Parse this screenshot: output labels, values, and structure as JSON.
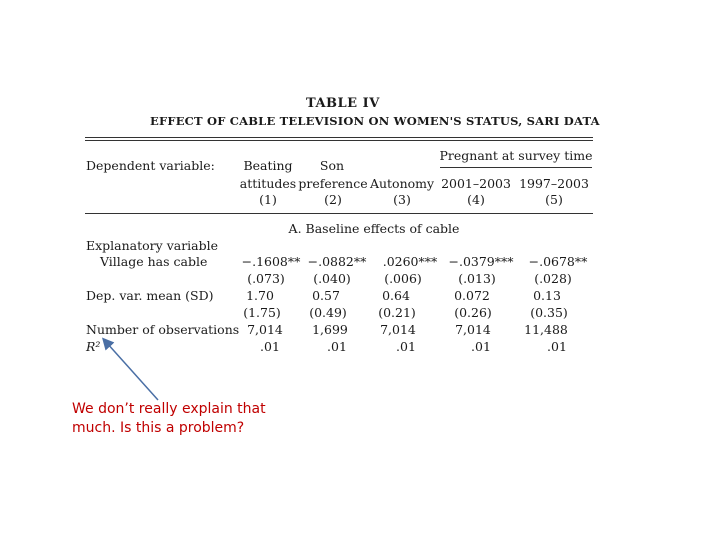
{
  "table": {
    "title": "TABLE IV",
    "subtitle": "EFFECT OF CABLE TELEVISION ON WOMEN'S STATUS, SARI DATA",
    "dep_var_label": "Dependent variable:",
    "col_group": "Pregnant at survey time",
    "columns": [
      {
        "line1": "Beating",
        "line2": "attitudes",
        "num": "(1)"
      },
      {
        "line1": "Son",
        "line2": "preference",
        "num": "(2)"
      },
      {
        "line1": "",
        "line2": "Autonomy",
        "num": "(3)"
      },
      {
        "line1": "",
        "line2": "2001–2003",
        "num": "(4)"
      },
      {
        "line1": "",
        "line2": "1997–2003",
        "num": "(5)"
      }
    ],
    "panel_a": "A. Baseline effects of cable",
    "expl_var_label": "Explanatory variable",
    "village_label": "Village has cable",
    "coefs": [
      "−.1608**",
      "−.0882**",
      ".0260***",
      "−.0379***",
      "−.0678**"
    ],
    "ses": [
      "(.073)",
      "(.040)",
      "(.006)",
      "(.013)",
      "(.028)"
    ],
    "dep_mean_label": "Dep. var. mean (SD)",
    "means": [
      "1.70",
      "0.57",
      "0.64",
      "0.072",
      "0.13"
    ],
    "sds": [
      "(1.75)",
      "(0.49)",
      "(0.21)",
      "(0.26)",
      "(0.35)"
    ],
    "nobs_label": "Number of observations",
    "nobs": [
      "7,014",
      "1,699",
      "7,014",
      "7,014",
      "11,488"
    ],
    "r2_label": "R²",
    "r2": [
      ".01",
      ".01",
      ".01",
      ".01",
      ".01"
    ]
  },
  "annotation": {
    "text": "We don’t really explain that much. Is this a problem?",
    "color": "#c00000",
    "arrow_color": "#4a6fa5"
  }
}
